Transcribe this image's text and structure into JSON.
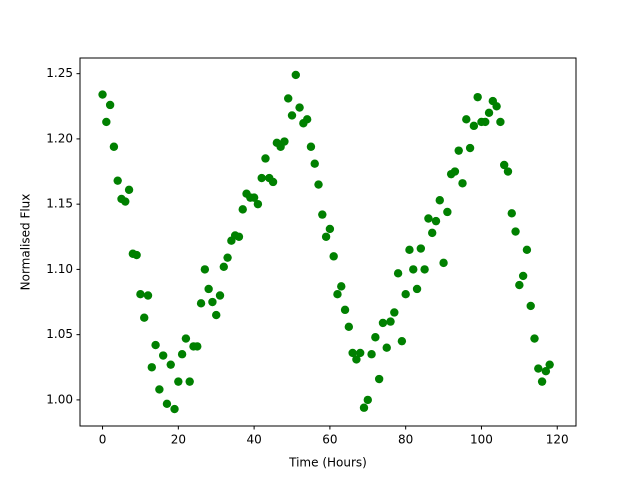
{
  "chart_data": {
    "type": "scatter",
    "x_label": "Time (Hours)",
    "y_label": "Normalised Flux",
    "color": "#008000",
    "x": [
      0,
      1,
      2,
      3,
      4,
      5,
      6,
      7,
      8,
      9,
      10,
      11,
      12,
      13,
      14,
      15,
      16,
      17,
      18,
      19,
      20,
      21,
      22,
      23,
      24,
      25,
      26,
      27,
      28,
      29,
      30,
      31,
      32,
      33,
      34,
      35,
      36,
      37,
      38,
      39,
      40,
      41,
      42,
      43,
      44,
      45,
      46,
      47,
      48,
      49,
      50,
      51,
      52,
      53,
      54,
      55,
      56,
      57,
      58,
      59,
      60,
      61,
      62,
      63,
      64,
      65,
      66,
      67,
      68,
      69,
      70,
      71,
      72,
      73,
      74,
      75,
      76,
      77,
      78,
      79,
      80,
      81,
      82,
      83,
      84,
      85,
      86,
      87,
      88,
      89,
      90,
      91,
      92,
      93,
      94,
      95,
      96,
      97,
      98,
      99,
      100,
      101,
      102,
      103,
      104,
      105,
      106,
      107,
      108,
      109,
      110,
      111,
      112,
      113,
      114,
      115,
      116,
      117,
      118
    ],
    "values": [
      1.234,
      1.213,
      1.226,
      1.194,
      1.168,
      1.154,
      1.152,
      1.161,
      1.112,
      1.111,
      1.081,
      1.063,
      1.08,
      1.025,
      1.042,
      1.008,
      1.034,
      0.997,
      1.027,
      0.993,
      1.014,
      1.035,
      1.047,
      1.014,
      1.041,
      1.041,
      1.074,
      1.1,
      1.085,
      1.075,
      1.065,
      1.08,
      1.102,
      1.109,
      1.122,
      1.126,
      1.125,
      1.146,
      1.158,
      1.155,
      1.155,
      1.15,
      1.17,
      1.185,
      1.17,
      1.167,
      1.197,
      1.194,
      1.198,
      1.231,
      1.218,
      1.249,
      1.224,
      1.212,
      1.215,
      1.194,
      1.181,
      1.165,
      1.142,
      1.125,
      1.131,
      1.11,
      1.081,
      1.087,
      1.069,
      1.056,
      1.036,
      1.031,
      1.036,
      0.994,
      1.0,
      1.035,
      1.048,
      1.016,
      1.059,
      1.04,
      1.06,
      1.067,
      1.097,
      1.045,
      1.081,
      1.115,
      1.1,
      1.085,
      1.116,
      1.1,
      1.139,
      1.128,
      1.137,
      1.153,
      1.105,
      1.144,
      1.173,
      1.175,
      1.191,
      1.166,
      1.215,
      1.193,
      1.21,
      1.232,
      1.213,
      1.213,
      1.22,
      1.229,
      1.225,
      1.213,
      1.18,
      1.175,
      1.143,
      1.129,
      1.088,
      1.095,
      1.115,
      1.072,
      1.047,
      1.024,
      1.014,
      1.022,
      1.027
    ],
    "xlim": [
      -5.95,
      124.95
    ],
    "ylim": [
      0.98,
      1.262
    ],
    "xticks": [
      0,
      20,
      40,
      60,
      80,
      100,
      120
    ],
    "yticks": [
      {
        "value": 1.0,
        "label": "1.00"
      },
      {
        "value": 1.05,
        "label": "1.05"
      },
      {
        "value": 1.1,
        "label": "1.10"
      },
      {
        "value": 1.15,
        "label": "1.15"
      },
      {
        "value": 1.2,
        "label": "1.20"
      },
      {
        "value": 1.25,
        "label": "1.25"
      }
    ]
  }
}
